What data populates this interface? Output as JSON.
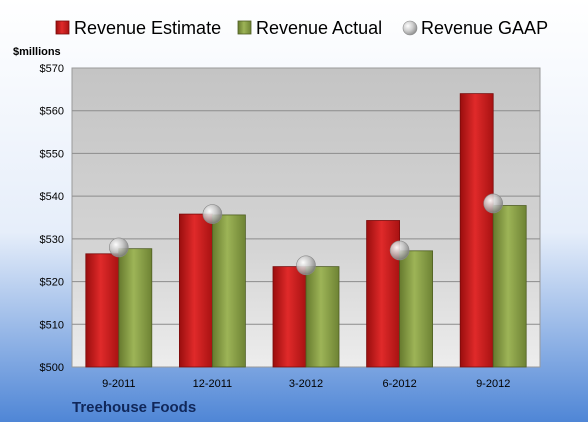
{
  "chart_data": {
    "type": "bar",
    "title": "",
    "ylabel": "$millions",
    "footer_label": "Treehouse Foods",
    "categories": [
      "9-2011",
      "12-2011",
      "3-2012",
      "6-2012",
      "9-2012"
    ],
    "y_ticks": [
      "$500",
      "$510",
      "$520",
      "$530",
      "$540",
      "$550",
      "$560",
      "$570"
    ],
    "ylim": [
      500,
      570
    ],
    "grid": true,
    "legend_position": "top",
    "series": [
      {
        "name": "Revenue Estimate",
        "kind": "bar",
        "color": "#cc1f1f",
        "values": [
          526.5,
          535.8,
          523.5,
          534.3,
          564.0
        ]
      },
      {
        "name": "Revenue Actual",
        "kind": "bar",
        "color": "#8aa048",
        "values": [
          527.7,
          535.6,
          523.5,
          527.2,
          537.8
        ]
      },
      {
        "name": "Revenue GAAP",
        "kind": "marker",
        "color": "#b8b8b8",
        "values": [
          528.0,
          535.8,
          523.8,
          527.3,
          538.3
        ]
      }
    ]
  }
}
